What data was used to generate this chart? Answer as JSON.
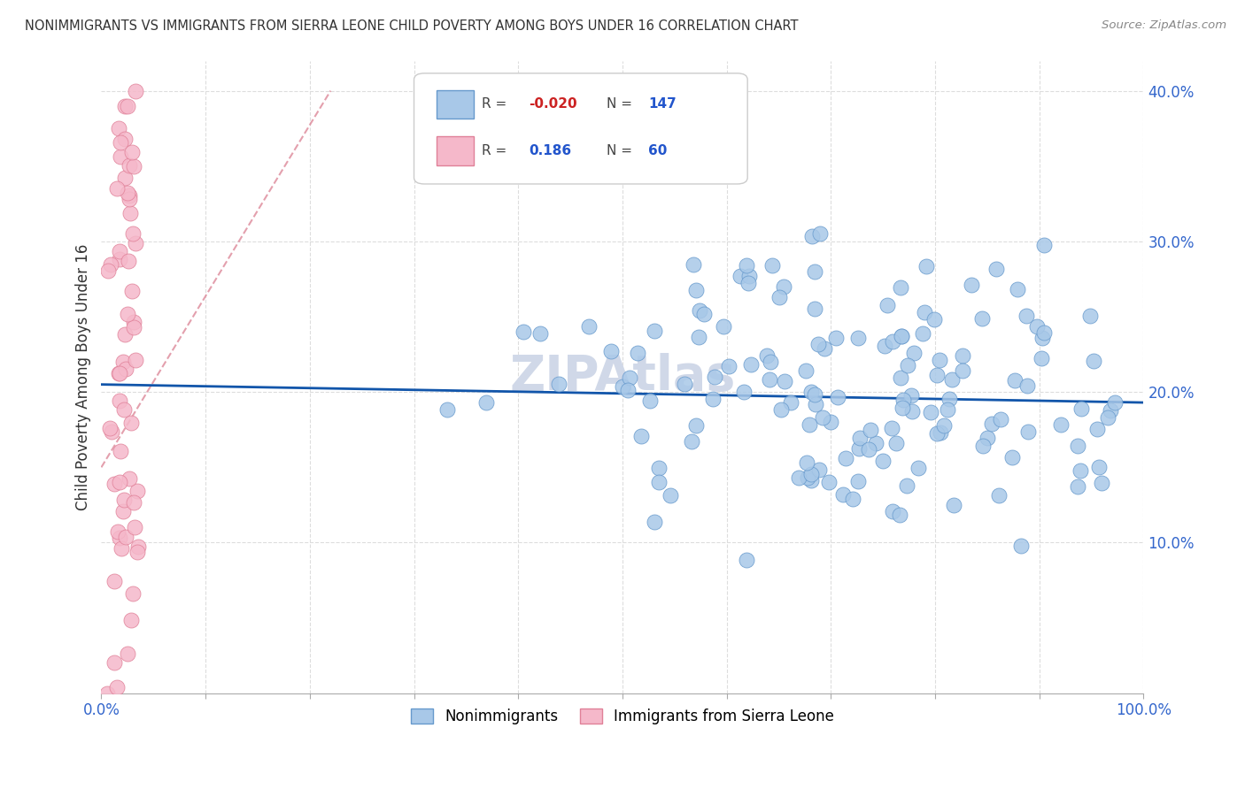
{
  "title": "NONIMMIGRANTS VS IMMIGRANTS FROM SIERRA LEONE CHILD POVERTY AMONG BOYS UNDER 16 CORRELATION CHART",
  "source": "Source: ZipAtlas.com",
  "ylabel": "Child Poverty Among Boys Under 16",
  "xlim": [
    0,
    1.0
  ],
  "ylim": [
    0,
    0.42
  ],
  "xtick_positions": [
    0.0,
    0.1,
    0.2,
    0.3,
    0.4,
    0.5,
    0.6,
    0.7,
    0.8,
    0.9,
    1.0
  ],
  "xticklabels": [
    "0.0%",
    "",
    "",
    "",
    "",
    "",
    "",
    "",
    "",
    "",
    "100.0%"
  ],
  "ytick_positions": [
    0.0,
    0.1,
    0.2,
    0.3,
    0.4
  ],
  "yticklabels": [
    "",
    "10.0%",
    "20.0%",
    "30.0%",
    "40.0%"
  ],
  "blue_fill": "#a8c8e8",
  "blue_edge": "#6699cc",
  "pink_fill": "#f5b8ca",
  "pink_edge": "#e08098",
  "trend_blue_color": "#1155aa",
  "trend_pink_color": "#dd8899",
  "grid_color": "#dddddd",
  "watermark_color": "#d0d8e8",
  "tick_color": "#3366cc",
  "r1": "-0.020",
  "n1": "147",
  "r2": "0.186",
  "n2": "60",
  "legend_label1": "Nonimmigrants",
  "legend_label2": "Immigrants from Sierra Leone"
}
